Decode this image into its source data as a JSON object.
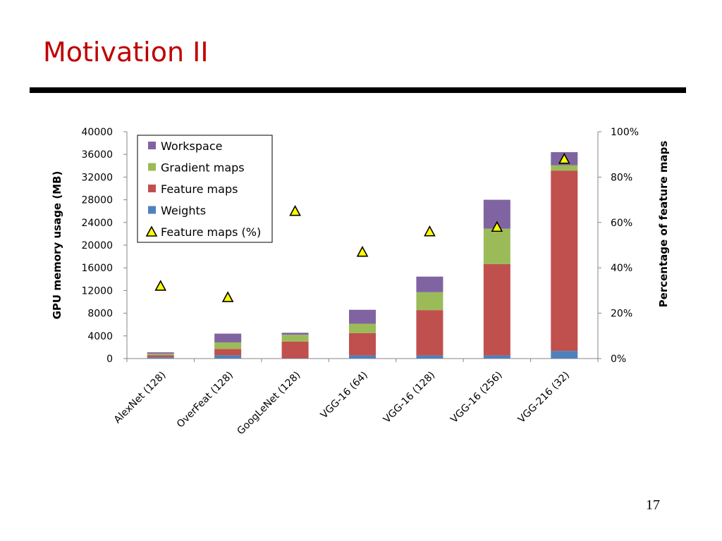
{
  "slide": {
    "title": "Motivation II",
    "page_number": "17"
  },
  "chart_data": {
    "type": "bar",
    "stacked": true,
    "categories": [
      "AlexNet  (128)",
      "OverFeat (128)",
      "GoogLeNet (128)",
      "VGG-16 (64)",
      "VGG-16 (128)",
      "VGG-16 (256)",
      "VGG-216 (32)"
    ],
    "series": [
      {
        "name": "Weights",
        "color": "#4f81bd",
        "values": [
          230,
          570,
          50,
          550,
          550,
          550,
          1350
        ]
      },
      {
        "name": "Feature maps",
        "color": "#c0504d",
        "values": [
          370,
          1130,
          2950,
          3950,
          8000,
          16100,
          31800
        ]
      },
      {
        "name": "Gradient maps",
        "color": "#9bbb59",
        "values": [
          250,
          1150,
          1200,
          1650,
          3150,
          6250,
          950
        ]
      },
      {
        "name": "Workspace",
        "color": "#8064a2",
        "values": [
          250,
          1550,
          350,
          2450,
          2750,
          5100,
          2300
        ]
      }
    ],
    "line_series": {
      "name": "Feature maps (%)",
      "axis": "right",
      "marker": "triangle",
      "marker_fill": "#ffff00",
      "values": [
        32,
        27,
        65,
        47,
        56,
        58,
        88
      ]
    },
    "ylabel": "GPU memory usage (MB)",
    "ylim": [
      0,
      40000
    ],
    "yticks": [
      "0",
      "4000",
      "8000",
      "12000",
      "16000",
      "20000",
      "24000",
      "28000",
      "32000",
      "36000",
      "40000"
    ],
    "y2label": "Percentage of feature maps",
    "y2lim": [
      0,
      100
    ],
    "y2ticks": [
      "0%",
      "20%",
      "40%",
      "60%",
      "80%",
      "100%"
    ],
    "legend": {
      "placement": "top-left",
      "entries": [
        "Workspace",
        "Gradient maps",
        "Feature maps",
        "Weights",
        "Feature maps (%)"
      ]
    },
    "grid": false
  }
}
